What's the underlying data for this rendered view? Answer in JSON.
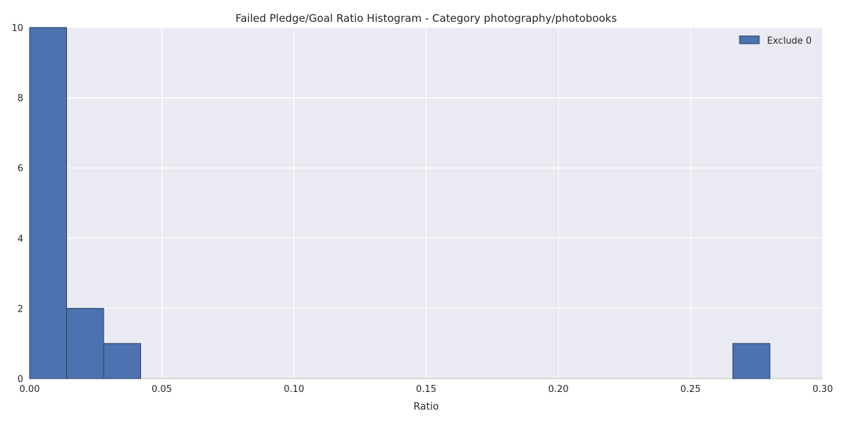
{
  "chart_data": {
    "type": "bar",
    "title": "Failed Pledge/Goal Ratio Histogram - Category photography/photobooks",
    "xlabel": "Ratio",
    "ylabel": "",
    "xlim": [
      0.0,
      0.3
    ],
    "ylim": [
      0,
      10
    ],
    "x_ticks": [
      "0.00",
      "0.05",
      "0.10",
      "0.15",
      "0.20",
      "0.25",
      "0.30"
    ],
    "y_ticks": [
      "0",
      "2",
      "4",
      "6",
      "8",
      "10"
    ],
    "grid": true,
    "legend_position": "top-right",
    "series": [
      {
        "name": "Exclude 0",
        "color": "#4c72b0",
        "bins": [
          {
            "x0": 0.0,
            "x1": 0.014,
            "count": 10
          },
          {
            "x0": 0.014,
            "x1": 0.028,
            "count": 2
          },
          {
            "x0": 0.028,
            "x1": 0.042,
            "count": 1
          },
          {
            "x0": 0.266,
            "x1": 0.28,
            "count": 1
          }
        ]
      }
    ],
    "colors": {
      "plot_background": "#eaeaf2",
      "grid": "#ffffff",
      "bar": "#4c72b0",
      "bar_edge": "#2b3e5e"
    }
  }
}
